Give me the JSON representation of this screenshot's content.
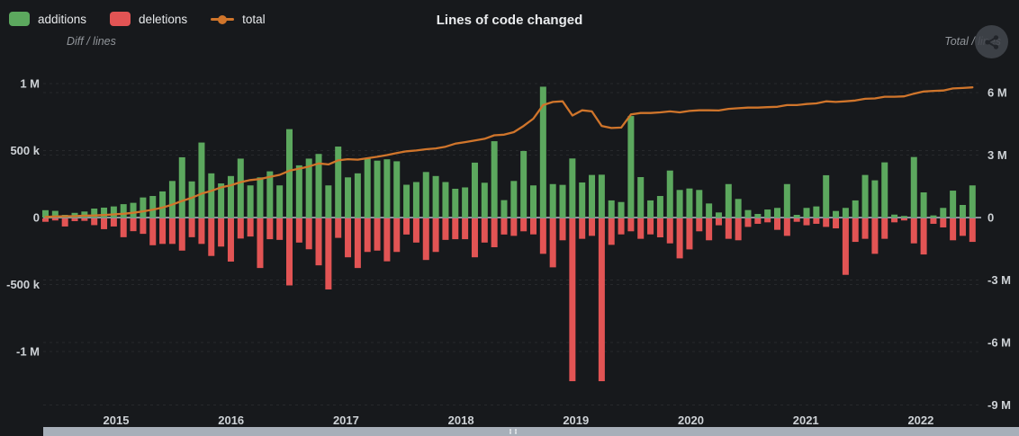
{
  "header": {
    "title": "Lines of code changed",
    "menu_icon": "share-icon"
  },
  "chart_data": {
    "type": "bar",
    "title": "Lines of code changed",
    "x_year_labels": [
      "2015",
      "2016",
      "2017",
      "2018",
      "2019",
      "2020",
      "2021",
      "2022"
    ],
    "left_axis": {
      "name": "Diff / lines",
      "ticks": [
        "1 M",
        "500 k",
        "0",
        "-500 k",
        "-1 M"
      ],
      "tick_values": [
        1000000,
        500000,
        0,
        -500000,
        -1000000
      ],
      "range": [
        -1430000,
        1120000
      ]
    },
    "right_axis": {
      "name": "Total / lines",
      "ticks": [
        "6 M",
        "3 M",
        "0",
        "-3 M",
        "-6 M",
        "-9 M"
      ],
      "tick_values": [
        6000000,
        3000000,
        0,
        -3000000,
        -6000000,
        -9000000
      ],
      "range": [
        -9190000,
        7200000
      ]
    },
    "grid": true,
    "legend_position": "top-left",
    "series": [
      {
        "name": "additions",
        "type": "bar",
        "axis": "left",
        "color": "#5ca85e",
        "values": [
          55000,
          50000,
          20000,
          35000,
          45000,
          67000,
          74000,
          83000,
          100000,
          110000,
          150000,
          161000,
          195000,
          273000,
          450000,
          270000,
          560000,
          330000,
          255000,
          310000,
          440000,
          240000,
          300000,
          345000,
          240000,
          660000,
          390000,
          440000,
          475000,
          240000,
          530000,
          300000,
          330000,
          440000,
          425000,
          435000,
          420000,
          245000,
          265000,
          340000,
          310000,
          265000,
          215000,
          225000,
          410000,
          260000,
          570000,
          130000,
          273000,
          497000,
          240000,
          977000,
          250000,
          244000,
          441000,
          262000,
          318000,
          320000,
          128000,
          116000,
          758000,
          302000,
          128000,
          161000,
          351000,
          206000,
          217000,
          206000,
          105000,
          38000,
          250000,
          139000,
          56000,
          27000,
          60000,
          72000,
          250000,
          20000,
          72000,
          83000,
          316000,
          49000,
          72000,
          128000,
          318000,
          278000,
          412000,
          22000,
          12000,
          452000,
          188000,
          16000,
          72000,
          201000,
          94000,
          240000
        ]
      },
      {
        "name": "deletions",
        "type": "bar",
        "axis": "left",
        "color": "#e25454",
        "values": [
          -25000,
          -15000,
          -60000,
          -20000,
          -18000,
          -50000,
          -80000,
          -60000,
          -140000,
          -95000,
          -115000,
          -200000,
          -190000,
          -190000,
          -240000,
          -140000,
          -190000,
          -280000,
          -210000,
          -322000,
          -150000,
          -135000,
          -370000,
          -155000,
          -160000,
          -500000,
          -180000,
          -230000,
          -350000,
          -530000,
          -145000,
          -290000,
          -370000,
          -250000,
          -240000,
          -320000,
          -250000,
          -120000,
          -180000,
          -310000,
          -250000,
          -160000,
          -155000,
          -155000,
          -290000,
          -180000,
          -215000,
          -120000,
          -130000,
          -96000,
          -119000,
          -264000,
          -365000,
          -163000,
          -1215000,
          -152000,
          -130000,
          -1215000,
          -197000,
          -119000,
          -96000,
          -152000,
          -119000,
          -141000,
          -186000,
          -298000,
          -231000,
          -96000,
          -163000,
          -51000,
          -152000,
          -163000,
          -63000,
          -40000,
          -29000,
          -85000,
          -130000,
          -25000,
          -51000,
          -40000,
          -63000,
          -74000,
          -421000,
          -175000,
          -152000,
          -264000,
          -152000,
          -29000,
          -15000,
          -186000,
          -269000,
          -40000,
          -67000,
          -163000,
          -130000,
          -175000
        ]
      },
      {
        "name": "total",
        "type": "line",
        "axis": "right",
        "color": "#d0752b",
        "values": [
          30000,
          50000,
          60000,
          70000,
          90000,
          100000,
          120000,
          150000,
          180000,
          230000,
          300000,
          380000,
          480000,
          620000,
          800000,
          950000,
          1150000,
          1280000,
          1450000,
          1550000,
          1700000,
          1800000,
          1850000,
          1950000,
          2050000,
          2250000,
          2350000,
          2450000,
          2600000,
          2550000,
          2750000,
          2800000,
          2780000,
          2850000,
          2920000,
          3000000,
          3100000,
          3180000,
          3220000,
          3280000,
          3320000,
          3400000,
          3550000,
          3620000,
          3700000,
          3780000,
          3950000,
          3980000,
          4100000,
          4400000,
          4750000,
          5400000,
          5550000,
          5580000,
          4900000,
          5150000,
          5100000,
          4400000,
          4300000,
          4320000,
          4950000,
          5020000,
          5020000,
          5050000,
          5100000,
          5050000,
          5120000,
          5150000,
          5150000,
          5140000,
          5220000,
          5250000,
          5280000,
          5280000,
          5300000,
          5320000,
          5400000,
          5400000,
          5450000,
          5480000,
          5580000,
          5550000,
          5580000,
          5620000,
          5700000,
          5720000,
          5800000,
          5800000,
          5820000,
          5950000,
          6050000,
          6080000,
          6100000,
          6200000,
          6220000,
          6250000
        ]
      }
    ]
  },
  "colors": {
    "background": "#17191c",
    "grid": "rgba(255,255,255,0.07)",
    "zero_line": "#8b9199",
    "tick_text": "#ced2d6",
    "scrollbar": "#a7afb9"
  }
}
